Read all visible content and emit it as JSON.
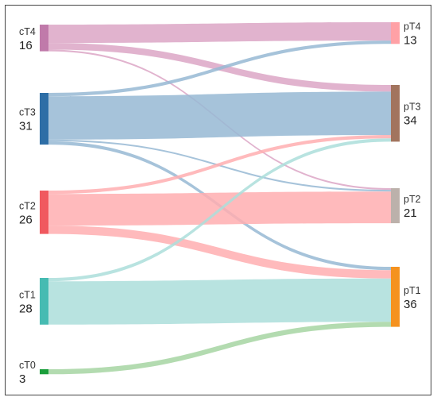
{
  "chart_data": {
    "type": "sankey",
    "left_nodes": [
      {
        "code": "cT4",
        "count": "16",
        "value": 16,
        "color": "#c07aaa"
      },
      {
        "code": "cT3",
        "count": "31",
        "value": 31,
        "color": "#2e6ea6"
      },
      {
        "code": "cT2",
        "count": "26",
        "value": 26,
        "color": "#f0595f"
      },
      {
        "code": "cT1",
        "count": "28",
        "value": 28,
        "color": "#46bbb2"
      },
      {
        "code": "cT0",
        "count": "3",
        "value": 3,
        "color": "#1a9e3b"
      }
    ],
    "right_nodes": [
      {
        "code": "pT4",
        "count": "13",
        "value": 13,
        "color": "#ffa1a6"
      },
      {
        "code": "pT3",
        "count": "34",
        "value": 34,
        "color": "#a2745e"
      },
      {
        "code": "pT2",
        "count": "21",
        "value": 21,
        "color": "#bcb1ab"
      },
      {
        "code": "pT1",
        "count": "36",
        "value": 36,
        "color": "#f5921f"
      }
    ],
    "flows": [
      {
        "from": "cT4",
        "to": "pT4",
        "value": 11,
        "color": "#dca6c6"
      },
      {
        "from": "cT4",
        "to": "pT3",
        "value": 4,
        "color": "#dca6c6"
      },
      {
        "from": "cT4",
        "to": "pT2",
        "value": 1,
        "color": "#dca6c6"
      },
      {
        "from": "cT3",
        "to": "pT4",
        "value": 2,
        "color": "#97b9d4"
      },
      {
        "from": "cT3",
        "to": "pT3",
        "value": 26,
        "color": "#97b9d4"
      },
      {
        "from": "cT3",
        "to": "pT2",
        "value": 1,
        "color": "#97b9d4"
      },
      {
        "from": "cT3",
        "to": "pT1",
        "value": 2,
        "color": "#97b9d4"
      },
      {
        "from": "cT2",
        "to": "pT3",
        "value": 2,
        "color": "#ffaeb0"
      },
      {
        "from": "cT2",
        "to": "pT2",
        "value": 19,
        "color": "#ffaeb0"
      },
      {
        "from": "cT2",
        "to": "pT1",
        "value": 5,
        "color": "#ffaeb0"
      },
      {
        "from": "cT1",
        "to": "pT3",
        "value": 2,
        "color": "#acdedb"
      },
      {
        "from": "cT1",
        "to": "pT1",
        "value": 26,
        "color": "#acdedb"
      },
      {
        "from": "cT0",
        "to": "pT1",
        "value": 3,
        "color": "#a6d5a2"
      }
    ]
  }
}
